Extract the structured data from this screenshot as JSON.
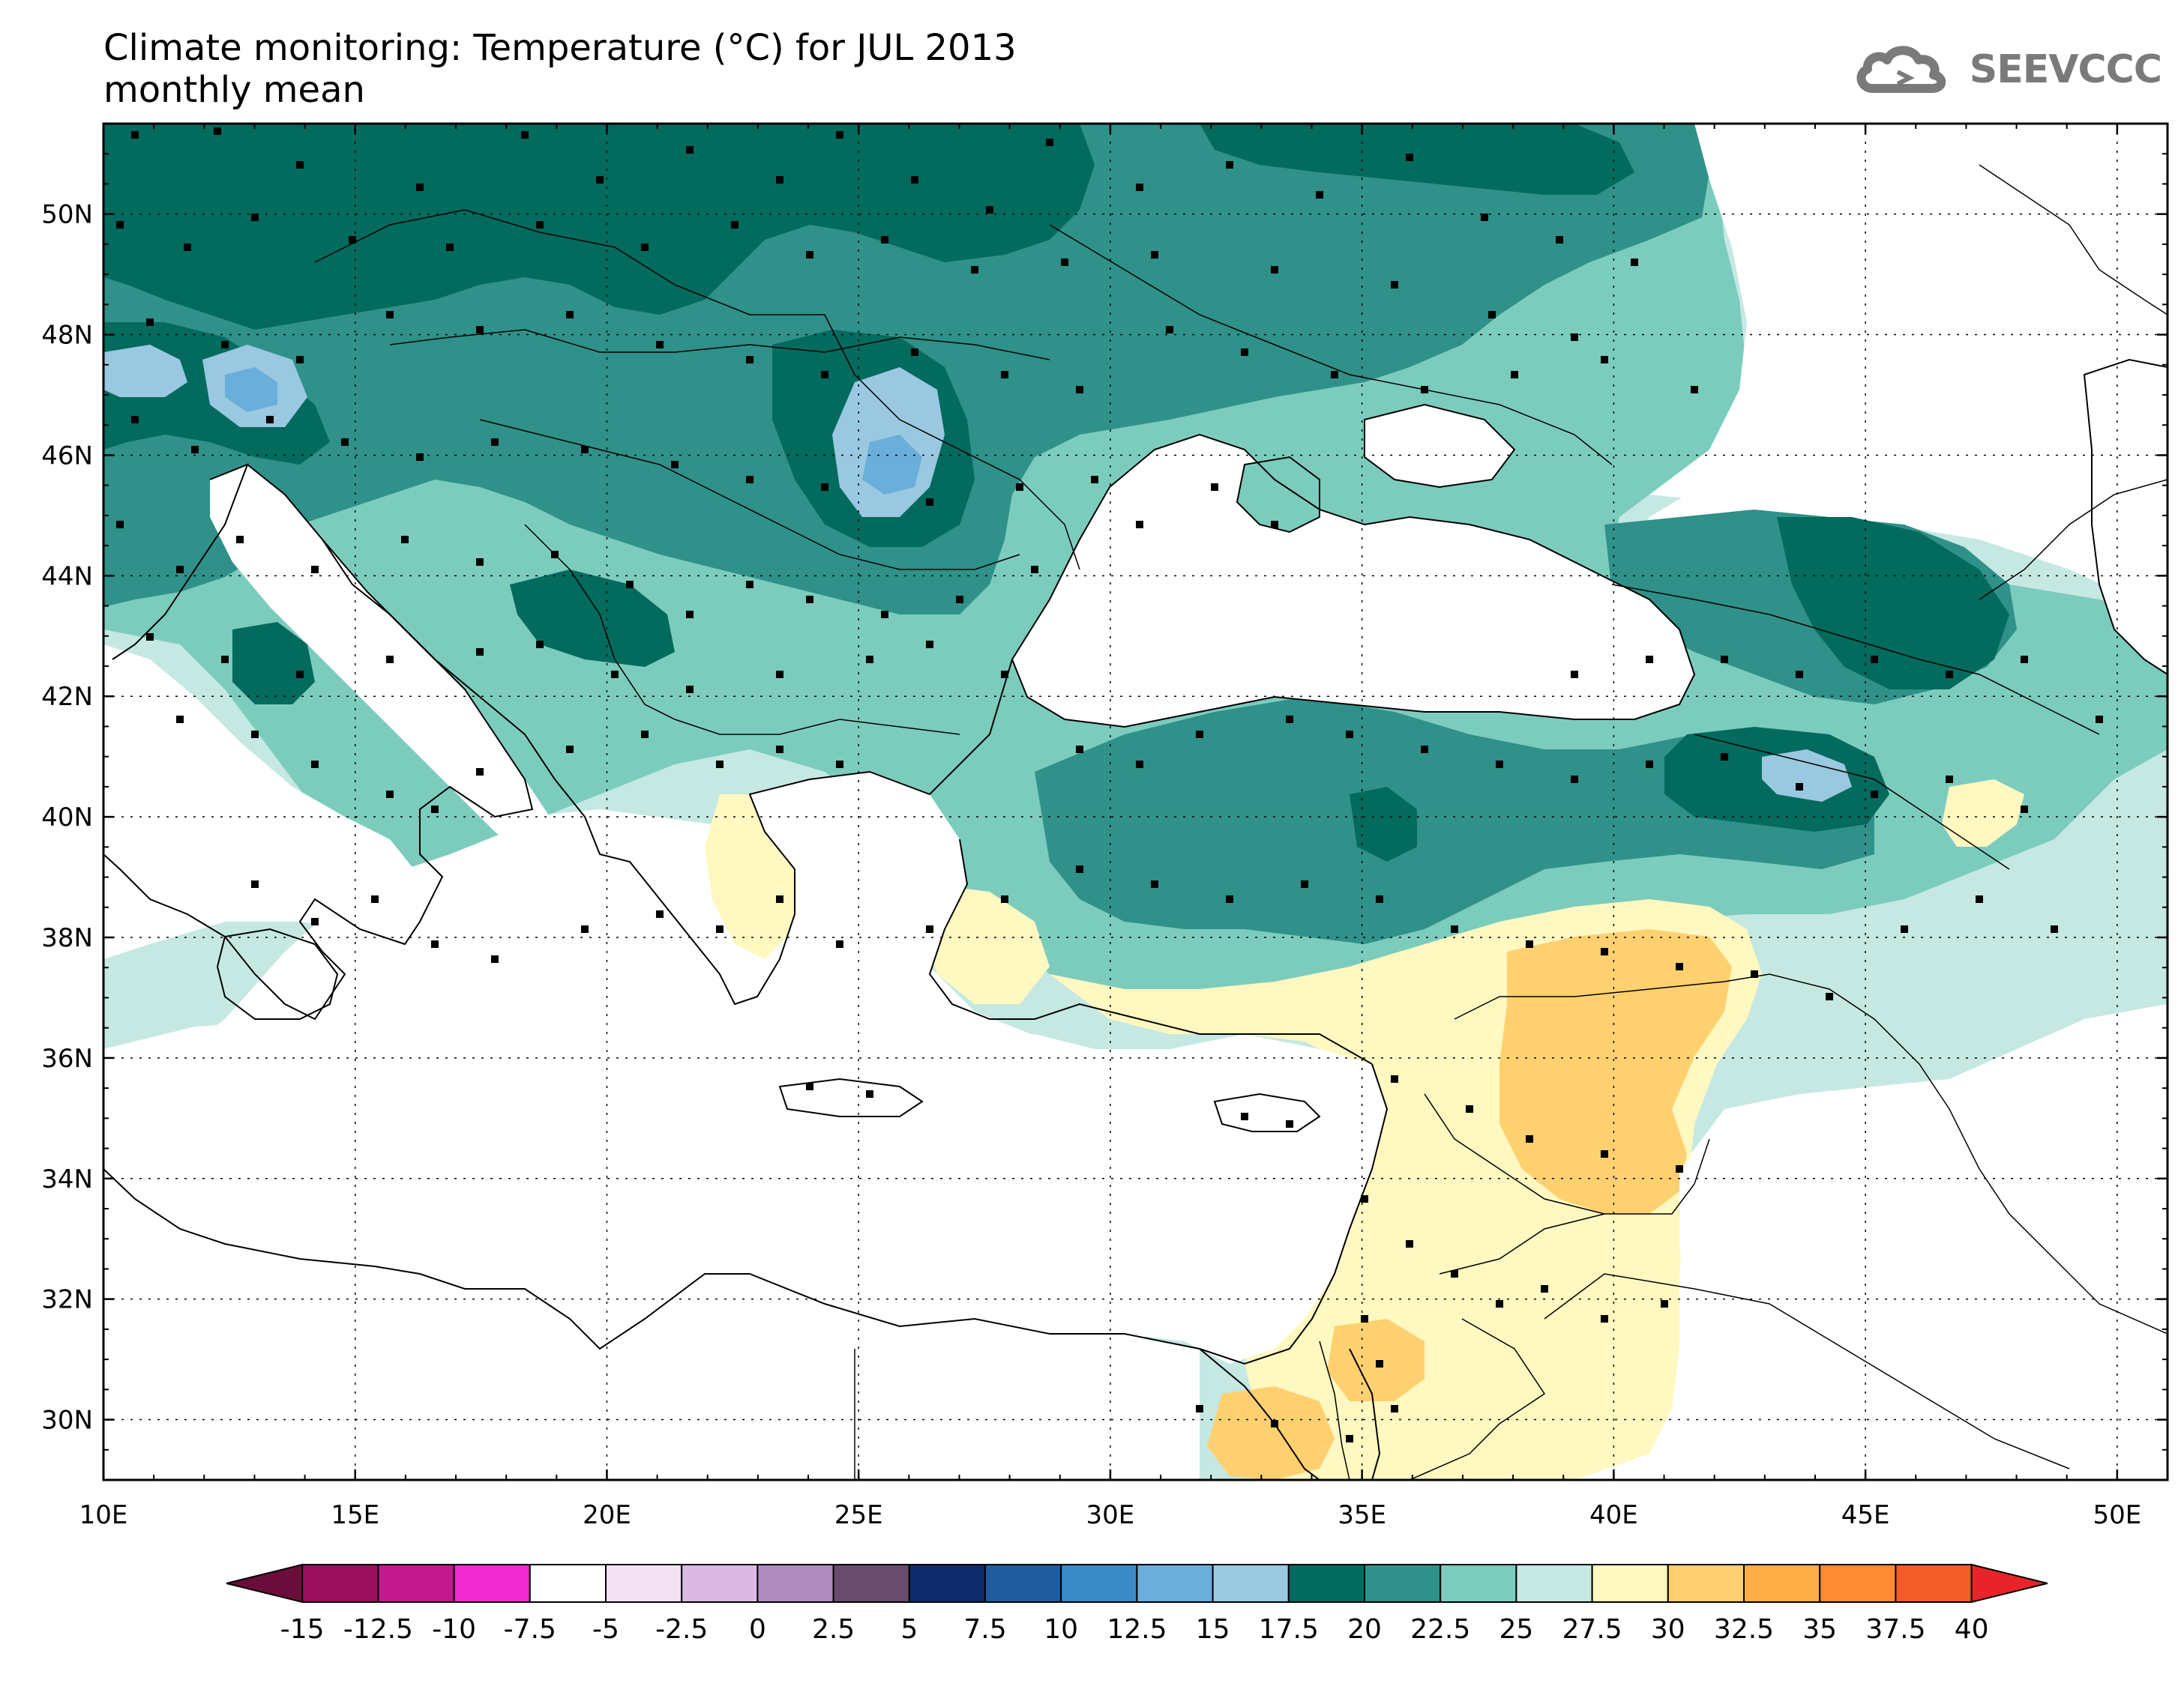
{
  "title": "Climate monitoring: Temperature (°C) for JUL 2013",
  "subtitle": "monthly mean",
  "logo_text": "SEEVCCC",
  "map": {
    "lon_range": [
      10,
      51
    ],
    "lat_range": [
      29,
      51.5
    ],
    "lon_ticks": [
      {
        "value": 10,
        "label": "10E"
      },
      {
        "value": 15,
        "label": "15E"
      },
      {
        "value": 20,
        "label": "20E"
      },
      {
        "value": 25,
        "label": "25E"
      },
      {
        "value": 30,
        "label": "30E"
      },
      {
        "value": 35,
        "label": "35E"
      },
      {
        "value": 40,
        "label": "40E"
      },
      {
        "value": 45,
        "label": "45E"
      },
      {
        "value": 50,
        "label": "50E"
      }
    ],
    "lat_ticks": [
      {
        "value": 30,
        "label": "30N"
      },
      {
        "value": 32,
        "label": "32N"
      },
      {
        "value": 34,
        "label": "34N"
      },
      {
        "value": 36,
        "label": "36N"
      },
      {
        "value": 38,
        "label": "38N"
      },
      {
        "value": 40,
        "label": "40N"
      },
      {
        "value": 42,
        "label": "42N"
      },
      {
        "value": 44,
        "label": "44N"
      },
      {
        "value": 46,
        "label": "46N"
      },
      {
        "value": 48,
        "label": "48N"
      },
      {
        "value": 50,
        "label": "50N"
      }
    ],
    "grid": true
  },
  "colorbar": {
    "labels": [
      "-15",
      "-12.5",
      "-10",
      "-7.5",
      "-5",
      "-2.5",
      "0",
      "2.5",
      "5",
      "7.5",
      "10",
      "12.5",
      "15",
      "17.5",
      "20",
      "22.5",
      "25",
      "27.5",
      "30",
      "32.5",
      "35",
      "37.5",
      "40"
    ],
    "low_color": "#6b0d3b",
    "high_color": "#e8242a",
    "colors": [
      "#9b0f5e",
      "#c21a8c",
      "#f22bd0",
      "#ffffff",
      "#f2e2f2",
      "#dcb9e3",
      "#ae8cbf",
      "#6a4d6c",
      "#0e2a6b",
      "#1e5c9f",
      "#3a8ac8",
      "#6aaedb",
      "#9ac8e0",
      "#036a5e",
      "#2f9189",
      "#7cccbd",
      "#c5e8e2",
      "#fff8c0",
      "#ffd070",
      "#ffae45",
      "#ff8a33",
      "#f25c28"
    ]
  }
}
